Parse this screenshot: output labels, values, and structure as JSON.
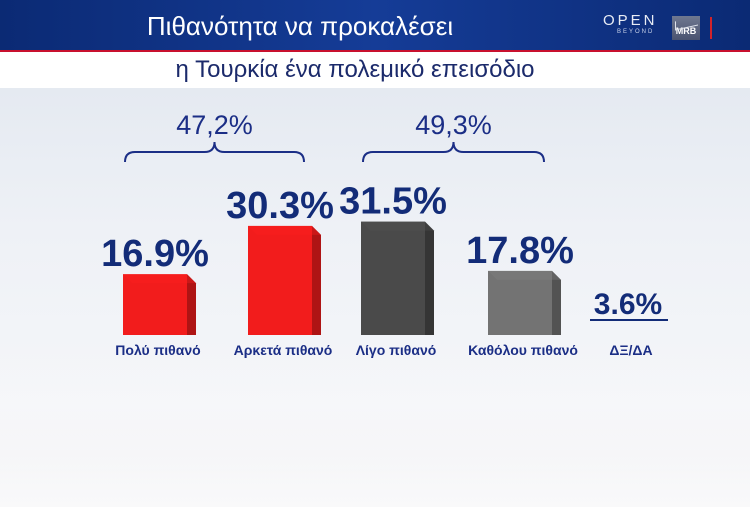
{
  "header": {
    "title": "Πιθανότητα να προκαλέσει",
    "subtitle": "η Τουρκία ένα πολεμικό επεισόδιο",
    "logo_open": "OPEN",
    "logo_open_sub": "BEYOND",
    "logo_mrb": "MRB"
  },
  "colors": {
    "red_bar": "#f21c1c",
    "dark_bar": "#4a4a4a",
    "mid_bar": "#737373",
    "label_text": "#132c78",
    "header_blue": "#123584"
  },
  "chart_data": {
    "type": "bar",
    "categories": [
      "Πολύ πιθανό",
      "Αρκετά πιθανό",
      "Λίγο πιθανό",
      "Καθόλου πιθανό",
      "ΔΞ/ΔΑ"
    ],
    "values": [
      16.9,
      30.3,
      31.5,
      17.8,
      3.6
    ],
    "value_labels": [
      "16.9%",
      "30.3%",
      "31.5%",
      "17.8%",
      "3.6%"
    ],
    "bar_colors": [
      "#f21c1c",
      "#f21c1c",
      "#4a4a4a",
      "#737373",
      "none"
    ],
    "groups": [
      {
        "label": "47,2%",
        "from": 0,
        "to": 1
      },
      {
        "label": "49,3%",
        "from": 2,
        "to": 3
      }
    ],
    "title": "Πιθανότητα να προκαλέσει",
    "subtitle": "η Τουρκία ένα πολεμικό επεισόδιο",
    "ylim": [
      0,
      35
    ],
    "grid": false,
    "legend": "none"
  }
}
